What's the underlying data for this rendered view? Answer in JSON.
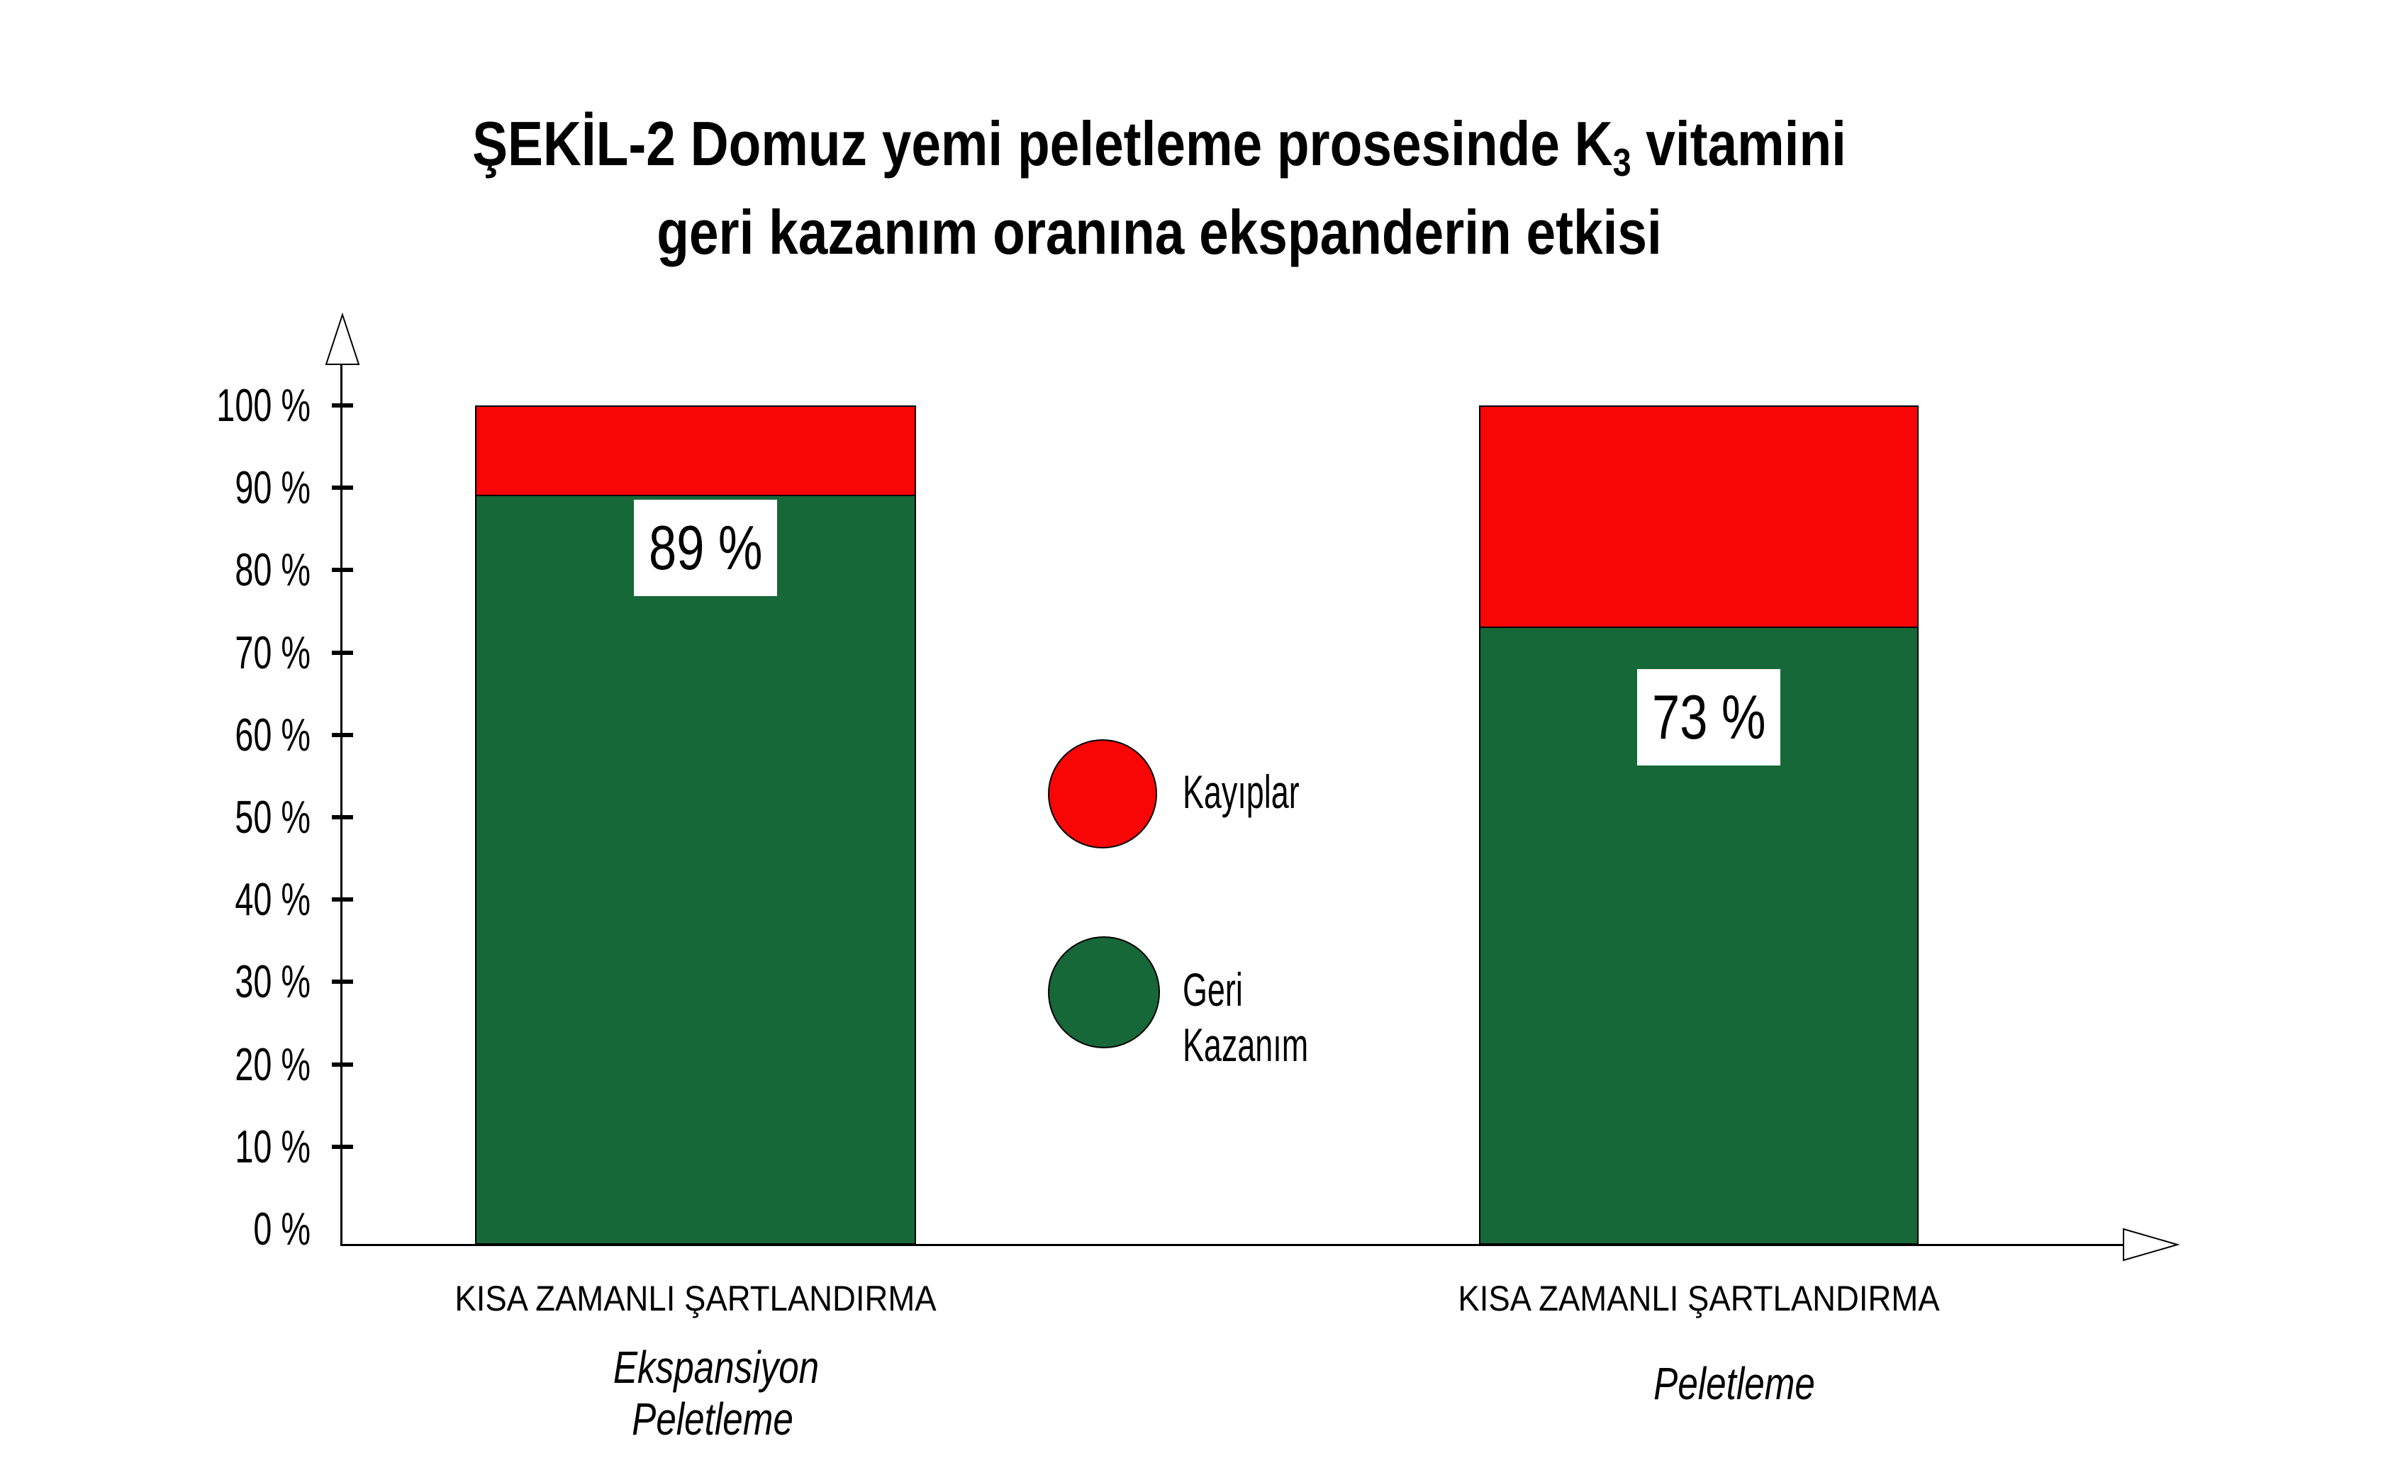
{
  "title": {
    "line1_pre": "ŞEKİL-2 Domuz yemi peletleme prosesinde K",
    "line1_sub": "3",
    "line1_post": " vitamini",
    "line2": "geri kazanım oranına ekspanderin etkisi"
  },
  "colors": {
    "loss_red": "#f80606",
    "recovery_green": "#166838",
    "axis_black": "#000000",
    "value_label_bg": "#ffffff"
  },
  "legend": {
    "items": [
      {
        "name": "kayiplar",
        "lines": [
          "Kayıplar"
        ],
        "color": "#f80606"
      },
      {
        "name": "geri-kazanim",
        "lines": [
          "Geri",
          "Kazanım"
        ],
        "color": "#166838"
      }
    ]
  },
  "chart_data": {
    "type": "bar",
    "stacked": true,
    "title": "ŞEKİL-2 Domuz yemi peletleme prosesinde K3 vitamini geri kazanım oranına ekspanderin etkisi",
    "categories": [
      "KISA ZAMANLI ŞARTLANDIRMA",
      "KISA ZAMANLI ŞARTLANDIRMA"
    ],
    "category_sublabels": [
      [
        "Ekspansiyon",
        "Peletleme"
      ],
      [
        "Peletleme"
      ]
    ],
    "series": [
      {
        "name": "Geri Kazanım",
        "color": "#166838",
        "values": [
          89,
          73
        ]
      },
      {
        "name": "Kayıplar",
        "color": "#f80606",
        "values": [
          11,
          27
        ]
      }
    ],
    "bar_value_labels": [
      "89 %",
      "73 %"
    ],
    "ylim": [
      0,
      100
    ],
    "yticks": {
      "values": [
        0,
        10,
        20,
        30,
        40,
        50,
        60,
        70,
        80,
        90,
        100
      ],
      "labels": [
        "0 %",
        "10 %",
        "20 %",
        "30 %",
        "40 %",
        "50 %",
        "60 %",
        "70 %",
        "80 %",
        "90 %",
        "100 %"
      ]
    },
    "grid": false,
    "legend_position": "center-between-bars",
    "xlabel": "",
    "ylabel": ""
  }
}
